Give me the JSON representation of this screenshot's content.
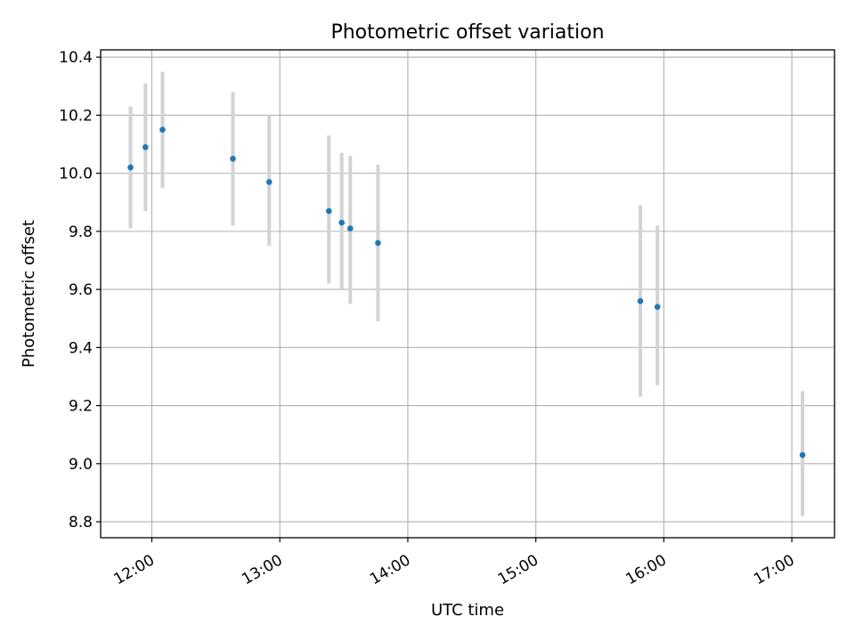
{
  "chart_data": {
    "type": "scatter",
    "title": "Photometric offset variation",
    "xlabel": "UTC time",
    "ylabel": "Photometric offset",
    "x_axis": "time",
    "xlim": [
      "11:36",
      "17:20"
    ],
    "ylim": [
      8.745,
      10.425
    ],
    "x_ticks": [
      "12:00",
      "13:00",
      "14:00",
      "15:00",
      "16:00",
      "17:00"
    ],
    "y_ticks": [
      "8.8",
      "9.0",
      "9.2",
      "9.4",
      "9.6",
      "9.8",
      "10.0",
      "10.2",
      "10.4"
    ],
    "grid": true,
    "legend": "none",
    "point_color": "#1f77b4",
    "errorbar_color": "#d3d3d3",
    "points": [
      {
        "x": "11:50",
        "y": 10.02,
        "ylow": 9.81,
        "yhigh": 10.23
      },
      {
        "x": "11:57",
        "y": 10.09,
        "ylow": 9.87,
        "yhigh": 10.31
      },
      {
        "x": "12:05",
        "y": 10.15,
        "ylow": 9.95,
        "yhigh": 10.35
      },
      {
        "x": "12:38",
        "y": 10.05,
        "ylow": 9.82,
        "yhigh": 10.28
      },
      {
        "x": "12:55",
        "y": 9.97,
        "ylow": 9.75,
        "yhigh": 10.2
      },
      {
        "x": "13:23",
        "y": 9.87,
        "ylow": 9.62,
        "yhigh": 10.13
      },
      {
        "x": "13:29",
        "y": 9.83,
        "ylow": 9.6,
        "yhigh": 10.07
      },
      {
        "x": "13:33",
        "y": 9.81,
        "ylow": 9.55,
        "yhigh": 10.06
      },
      {
        "x": "13:46",
        "y": 9.76,
        "ylow": 9.49,
        "yhigh": 10.03
      },
      {
        "x": "15:49",
        "y": 9.56,
        "ylow": 9.23,
        "yhigh": 9.89
      },
      {
        "x": "15:57",
        "y": 9.54,
        "ylow": 9.27,
        "yhigh": 9.82
      },
      {
        "x": "17:05",
        "y": 9.03,
        "ylow": 8.82,
        "yhigh": 9.25
      }
    ]
  }
}
